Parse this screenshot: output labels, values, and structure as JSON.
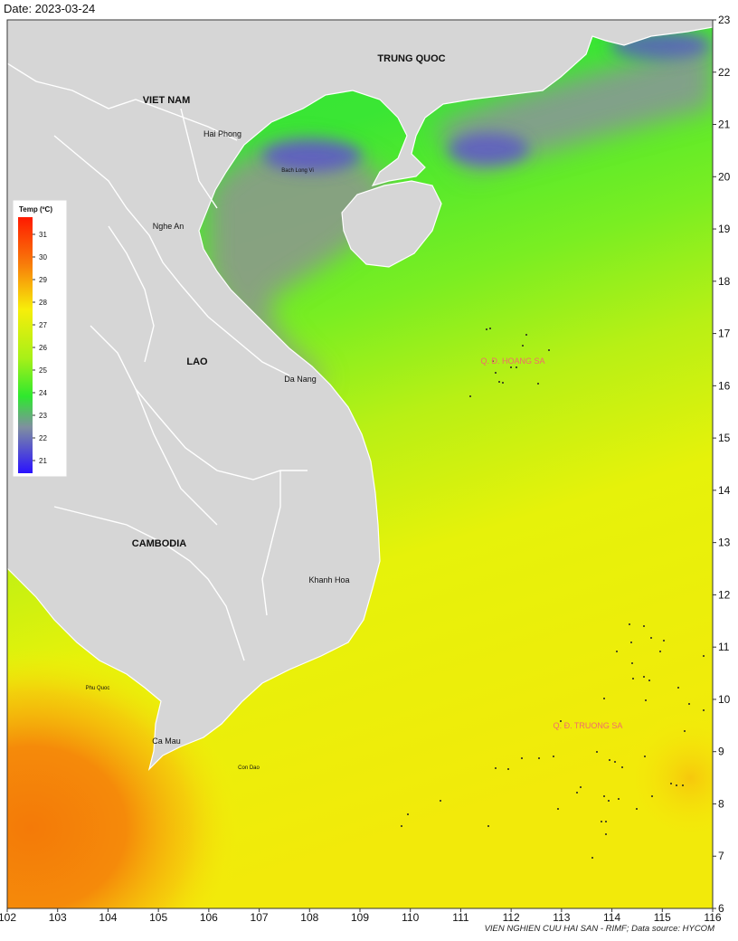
{
  "date_label": "Date: 2023-03-24",
  "credit": "VIEN NGHIEN CUU HAI SAN - RIMF; Data source: HYCOM",
  "axes": {
    "x_ticks": [
      "102",
      "103",
      "104",
      "105",
      "106",
      "107",
      "108",
      "109",
      "110",
      "111",
      "112",
      "113",
      "114",
      "115",
      "116"
    ],
    "y_ticks": [
      "6",
      "7",
      "8",
      "9",
      "10",
      "11",
      "12",
      "13",
      "14",
      "15",
      "16",
      "17",
      "18",
      "19",
      "20",
      "21",
      "22",
      "23"
    ]
  },
  "legend": {
    "title": "Temp (ºC)",
    "ticks": [
      "31",
      "30",
      "29",
      "28",
      "27",
      "26",
      "25",
      "24",
      "23",
      "22",
      "21"
    ]
  },
  "countries": {
    "trung_quoc": "TRUNG QUOC",
    "viet_nam": "VIET NAM",
    "lao": "LAO",
    "cambodia": "CAMBODIA"
  },
  "places": {
    "hai_phong": "Hai Phong",
    "bach_long_vi": "Bach Long Vi",
    "nghe_an": "Nghe An",
    "da_nang": "Da Nang",
    "khanh_hoa": "Khanh Hoa",
    "phu_quoc": "Phu Quoc",
    "ca_mau": "Ca Mau",
    "con_dao": "Con Dao"
  },
  "archipelagos": {
    "hoang_sa": "Q. Đ. HOANG SA",
    "truong_sa": "Q. Đ. TRUONG SA"
  },
  "colors": {
    "land": "#d6d6d6",
    "border": "#ffffff",
    "cold": "#5a4fcf",
    "cool": "#7f8fa0",
    "green": "#2ee82e",
    "lime": "#9af21a",
    "yellow": "#f4f00a",
    "orange": "#f7a00a",
    "warm": "#f47a08"
  }
}
